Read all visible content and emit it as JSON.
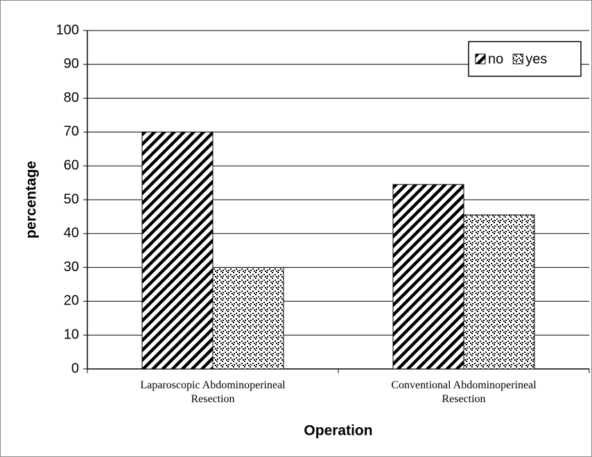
{
  "chart_data": {
    "type": "bar",
    "categories": [
      "Laparoscopic Abdominoperineal\nResection",
      "Conventional Abdominoperineal\nResection"
    ],
    "series": [
      {
        "name": "no",
        "color": "#000000",
        "pattern": "diagonal",
        "values": [
          70,
          54.5
        ]
      },
      {
        "name": "yes",
        "color": "#000000",
        "pattern": "dots",
        "values": [
          30,
          45.5
        ]
      }
    ],
    "x_label": "Operation",
    "y_label": "percentage",
    "ylim": [
      0,
      100
    ],
    "yticks": [
      0,
      10,
      20,
      30,
      40,
      50,
      60,
      70,
      80,
      90,
      100
    ],
    "grid": true,
    "legend": "top-right"
  }
}
